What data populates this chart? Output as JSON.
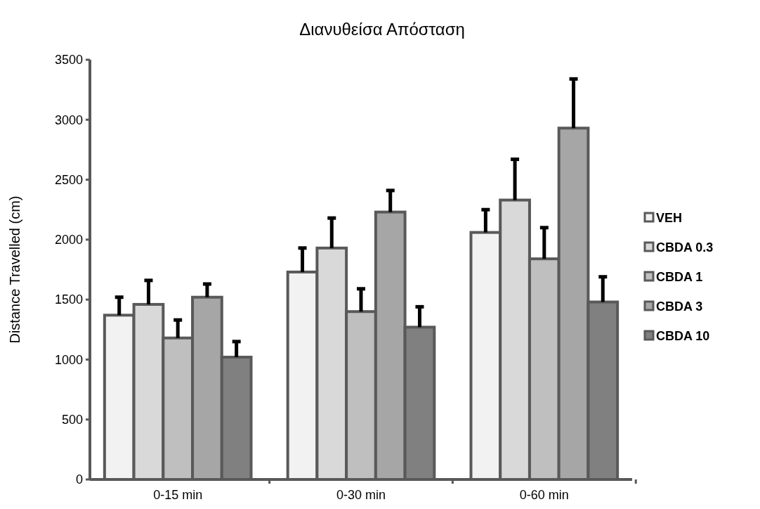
{
  "chart_data": {
    "type": "bar",
    "title": "Διανυθείσα Απόσταση",
    "ylabel": "Distance Travelled (cm)",
    "categories": [
      "0-15 min",
      "0-30 min",
      "0-60 min"
    ],
    "series": [
      {
        "name": "VEH",
        "color": "#f2f2f2",
        "values": [
          1370,
          1730,
          2060
        ],
        "errors": [
          [
            1370,
            1520
          ],
          [
            1730,
            1930
          ],
          [
            2060,
            2250
          ]
        ]
      },
      {
        "name": "CBDA 0.3",
        "color": "#d9d9d9",
        "values": [
          1460,
          1930,
          2330
        ],
        "errors": [
          [
            1460,
            1660
          ],
          [
            1930,
            2180
          ],
          [
            2330,
            2670
          ]
        ]
      },
      {
        "name": "CBDA 1",
        "color": "#bfbfbf",
        "values": [
          1180,
          1400,
          1840
        ],
        "errors": [
          [
            1180,
            1330
          ],
          [
            1400,
            1590
          ],
          [
            1840,
            2100
          ]
        ]
      },
      {
        "name": "CBDA 3",
        "color": "#a6a6a6",
        "values": [
          1520,
          2230,
          2930
        ],
        "errors": [
          [
            1520,
            1630
          ],
          [
            2230,
            2410
          ],
          [
            2930,
            3340
          ]
        ]
      },
      {
        "name": "CBDA 10",
        "color": "#808080",
        "values": [
          1020,
          1270,
          1480
        ],
        "errors": [
          [
            1020,
            1150
          ],
          [
            1270,
            1440
          ],
          [
            1480,
            1690
          ]
        ]
      }
    ],
    "ylim": [
      0,
      3500
    ],
    "yticks": [
      0,
      500,
      1000,
      1500,
      2000,
      2500,
      3000,
      3500
    ],
    "grid": false,
    "legend": "right"
  }
}
